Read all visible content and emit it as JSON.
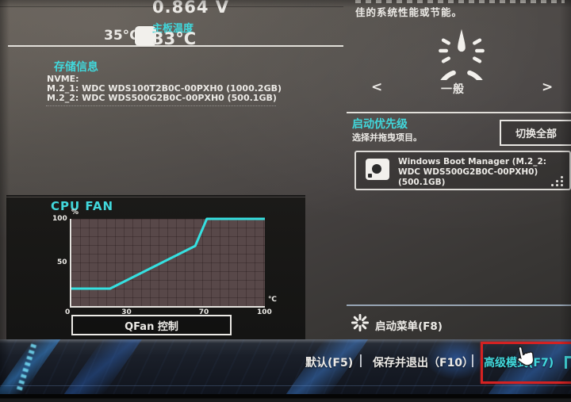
{
  "sensors": {
    "cpu_temp_side": "35°C",
    "voltage": "0.864 V",
    "board_temp_label": "主板温度",
    "board_temp": "33°C"
  },
  "storage": {
    "title": "存储信息",
    "bus": "NVME:",
    "drives": [
      "M.2_1: WDC WDS100T2B0C-00PXH0 (1000.2GB)",
      "M.2_2: WDC WDS500G2B0C-00PXH0 (500.1GB)"
    ]
  },
  "performance": {
    "description": "佳的系统性能或节能。",
    "mode": "一般",
    "prev_arrow": "<",
    "next_arrow": ">"
  },
  "boot": {
    "title": "启动优先级",
    "hint": "选择并拖曳项目。",
    "switch_all": "切换全部",
    "entry": "Windows Boot Manager (M.2_2: WDC WDS500G2B0C-00PXH0) (500.1GB)",
    "boot_menu": "启动菜单(F8)"
  },
  "footer": {
    "default_label": "默认(F5)",
    "save_exit_label": "保存并退出（F10）",
    "advanced_label": "高级模式(F7)",
    "divider": "|"
  },
  "icons": {
    "gauge": "gauge-icon",
    "drive": "drive-icon",
    "drag": "drag-handle-icon",
    "boot_burst": "boot-menu-icon",
    "hand": "hand-cursor-icon"
  },
  "colors": {
    "accent_cyan": "#41d8dc",
    "annotation_red": "#d42222",
    "fan_line": "#35e0e0",
    "plot_bg": "#584849"
  },
  "chart_data": {
    "type": "line",
    "title": "CPU FAN",
    "xlabel": "℃",
    "ylabel": "%",
    "x_ticks": [
      0,
      30,
      70,
      100
    ],
    "y_ticks": [
      50,
      100
    ],
    "xlim": [
      0,
      100
    ],
    "ylim": [
      0,
      100
    ],
    "grid": true,
    "series": [
      {
        "name": "CPU fan duty curve",
        "points": [
          [
            0,
            20
          ],
          [
            20,
            20
          ],
          [
            64,
            69
          ],
          [
            70,
            100
          ],
          [
            100,
            100
          ]
        ]
      }
    ],
    "button_label": "QFan 控制"
  }
}
